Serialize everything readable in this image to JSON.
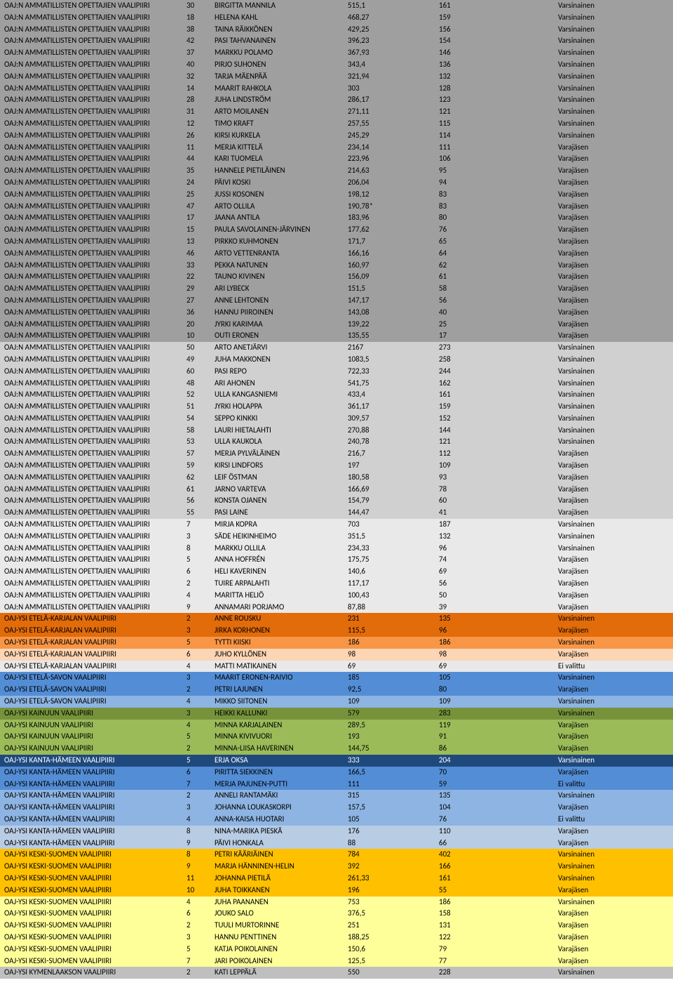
{
  "colors": {
    "darkgrey": "#9f9f9f",
    "lightgrey": "#d0d0d0",
    "verylightgrey": "#e9e9e9",
    "orange_dark": "#e26b0a",
    "orange_mid": "#f79646",
    "orange_light": "#fcd5b4",
    "blue_mid": "#538dd5",
    "blue_light": "#8db4e2",
    "green_dark": "#76933c",
    "green_mid": "#9bbb59",
    "blue_dark": "#1f497d",
    "blue_dark_t": "#ffffff",
    "lightblue": "#b8cce4",
    "yellow_dark": "#ffc000",
    "yellow_light": "#ffff99",
    "grey_kym": "#bfbfbf"
  },
  "rows": [
    {
      "bg": "darkgrey",
      "c1": "OAJ:N AMMATILLISTEN OPETTAJIEN VAALIPIIRI",
      "c2": "30",
      "c3": "BIRGITTA MANNILA",
      "c4": "515,1",
      "c5": "161",
      "c6": "Varsinainen"
    },
    {
      "bg": "darkgrey",
      "c1": "OAJ:N AMMATILLISTEN OPETTAJIEN VAALIPIIRI",
      "c2": "18",
      "c3": "HELENA KAHL",
      "c4": "468,27",
      "c5": "159",
      "c6": "Varsinainen"
    },
    {
      "bg": "darkgrey",
      "c1": "OAJ:N AMMATILLISTEN OPETTAJIEN VAALIPIIRI",
      "c2": "38",
      "c3": "TAINA RÄIKKÖNEN",
      "c4": "429,25",
      "c5": "156",
      "c6": "Varsinainen"
    },
    {
      "bg": "darkgrey",
      "c1": "OAJ:N AMMATILLISTEN OPETTAJIEN VAALIPIIRI",
      "c2": "42",
      "c3": "PASI TAHVANAINEN",
      "c4": "396,23",
      "c5": "154",
      "c6": "Varsinainen"
    },
    {
      "bg": "darkgrey",
      "c1": "OAJ:N AMMATILLISTEN OPETTAJIEN VAALIPIIRI",
      "c2": "37",
      "c3": "MARKKU POLAMO",
      "c4": "367,93",
      "c5": "146",
      "c6": "Varsinainen"
    },
    {
      "bg": "darkgrey",
      "c1": "OAJ:N AMMATILLISTEN OPETTAJIEN VAALIPIIRI",
      "c2": "40",
      "c3": "PIRJO SUHONEN",
      "c4": "343,4",
      "c5": "136",
      "c6": "Varsinainen"
    },
    {
      "bg": "darkgrey",
      "c1": "OAJ:N AMMATILLISTEN OPETTAJIEN VAALIPIIRI",
      "c2": "32",
      "c3": "TARJA MÄENPÄÄ",
      "c4": "321,94",
      "c5": "132",
      "c6": "Varsinainen"
    },
    {
      "bg": "darkgrey",
      "c1": "OAJ:N AMMATILLISTEN OPETTAJIEN VAALIPIIRI",
      "c2": "14",
      "c3": "MAARIT RAHKOLA",
      "c4": "303",
      "c5": "128",
      "c6": "Varsinainen"
    },
    {
      "bg": "darkgrey",
      "c1": "OAJ:N AMMATILLISTEN OPETTAJIEN VAALIPIIRI",
      "c2": "28",
      "c3": "JUHA LINDSTRÖM",
      "c4": "286,17",
      "c5": "123",
      "c6": "Varsinainen"
    },
    {
      "bg": "darkgrey",
      "c1": "OAJ:N AMMATILLISTEN OPETTAJIEN VAALIPIIRI",
      "c2": "31",
      "c3": "ARTO MOILANEN",
      "c4": "271,11",
      "c5": "121",
      "c6": "Varsinainen"
    },
    {
      "bg": "darkgrey",
      "c1": "OAJ:N AMMATILLISTEN OPETTAJIEN VAALIPIIRI",
      "c2": "12",
      "c3": "TIMO KRAFT",
      "c4": "257,55",
      "c5": "115",
      "c6": "Varsinainen"
    },
    {
      "bg": "darkgrey",
      "c1": "OAJ:N AMMATILLISTEN OPETTAJIEN VAALIPIIRI",
      "c2": "26",
      "c3": "KIRSI KURKELA",
      "c4": "245,29",
      "c5": "114",
      "c6": "Varsinainen"
    },
    {
      "bg": "darkgrey",
      "c1": "OAJ:N AMMATILLISTEN OPETTAJIEN VAALIPIIRI",
      "c2": "11",
      "c3": "MERJA KITTELÄ",
      "c4": "234,14",
      "c5": "111",
      "c6": "Varajäsen"
    },
    {
      "bg": "darkgrey",
      "c1": "OAJ:N AMMATILLISTEN OPETTAJIEN VAALIPIIRI",
      "c2": "44",
      "c3": "KARI TUOMELA",
      "c4": "223,96",
      "c5": "106",
      "c6": "Varajäsen"
    },
    {
      "bg": "darkgrey",
      "c1": "OAJ:N AMMATILLISTEN OPETTAJIEN VAALIPIIRI",
      "c2": "35",
      "c3": "HANNELE PIETILÄINEN",
      "c4": "214,63",
      "c5": "95",
      "c6": "Varajäsen"
    },
    {
      "bg": "darkgrey",
      "c1": "OAJ:N AMMATILLISTEN OPETTAJIEN VAALIPIIRI",
      "c2": "24",
      "c3": "PÄIVI KOSKI",
      "c4": "206,04",
      "c5": "94",
      "c6": "Varajäsen"
    },
    {
      "bg": "darkgrey",
      "c1": "OAJ:N AMMATILLISTEN OPETTAJIEN VAALIPIIRI",
      "c2": "25",
      "c3": "JUSSI KOSONEN",
      "c4": "198,12",
      "c5": "83",
      "c6": "Varajäsen"
    },
    {
      "bg": "darkgrey",
      "c1": "OAJ:N AMMATILLISTEN OPETTAJIEN VAALIPIIRI",
      "c2": "47",
      "c3": "ARTO OLLILA",
      "c4": "190,78*",
      "c5": "83",
      "c6": "Varajäsen"
    },
    {
      "bg": "darkgrey",
      "c1": "OAJ:N AMMATILLISTEN OPETTAJIEN VAALIPIIRI",
      "c2": "17",
      "c3": "JAANA ANTILA",
      "c4": "183,96",
      "c5": "80",
      "c6": "Varajäsen"
    },
    {
      "bg": "darkgrey",
      "c1": "OAJ:N AMMATILLISTEN OPETTAJIEN VAALIPIIRI",
      "c2": "15",
      "c3": "PAULA SAVOLAINEN-JÄRVINEN",
      "c4": "177,62",
      "c5": "76",
      "c6": "Varajäsen"
    },
    {
      "bg": "darkgrey",
      "c1": "OAJ:N AMMATILLISTEN OPETTAJIEN VAALIPIIRI",
      "c2": "13",
      "c3": "PIRKKO KUHMONEN",
      "c4": "171,7",
      "c5": "65",
      "c6": "Varajäsen"
    },
    {
      "bg": "darkgrey",
      "c1": "OAJ:N AMMATILLISTEN OPETTAJIEN VAALIPIIRI",
      "c2": "46",
      "c3": "ARTO VETTENRANTA",
      "c4": "166,16",
      "c5": "64",
      "c6": "Varajäsen"
    },
    {
      "bg": "darkgrey",
      "c1": "OAJ:N AMMATILLISTEN OPETTAJIEN VAALIPIIRI",
      "c2": "33",
      "c3": "PEKKA NATUNEN",
      "c4": "160,97",
      "c5": "62",
      "c6": "Varajäsen"
    },
    {
      "bg": "darkgrey",
      "c1": "OAJ:N AMMATILLISTEN OPETTAJIEN VAALIPIIRI",
      "c2": "22",
      "c3": "TAUNO KIVINEN",
      "c4": "156,09",
      "c5": "61",
      "c6": "Varajäsen"
    },
    {
      "bg": "darkgrey",
      "c1": "OAJ:N AMMATILLISTEN OPETTAJIEN VAALIPIIRI",
      "c2": "29",
      "c3": "ARI LYBECK",
      "c4": "151,5",
      "c5": "58",
      "c6": "Varajäsen"
    },
    {
      "bg": "darkgrey",
      "c1": "OAJ:N AMMATILLISTEN OPETTAJIEN VAALIPIIRI",
      "c2": "27",
      "c3": "ANNE LEHTONEN",
      "c4": "147,17",
      "c5": "56",
      "c6": "Varajäsen"
    },
    {
      "bg": "darkgrey",
      "c1": "OAJ:N AMMATILLISTEN OPETTAJIEN VAALIPIIRI",
      "c2": "36",
      "c3": "HANNU PIIROINEN",
      "c4": "143,08",
      "c5": "40",
      "c6": "Varajäsen"
    },
    {
      "bg": "darkgrey",
      "c1": "OAJ:N AMMATILLISTEN OPETTAJIEN VAALIPIIRI",
      "c2": "20",
      "c3": "JYRKI KARIMAA",
      "c4": "139,22",
      "c5": "25",
      "c6": "Varajäsen"
    },
    {
      "bg": "darkgrey",
      "c1": "OAJ:N AMMATILLISTEN OPETTAJIEN VAALIPIIRI",
      "c2": "10",
      "c3": "OUTI ERONEN",
      "c4": "135,55",
      "c5": "17",
      "c6": "Varajäsen"
    },
    {
      "bg": "lightgrey",
      "c1": "OAJ:N AMMATILLISTEN OPETTAJIEN VAALIPIIRI",
      "c2": "50",
      "c3": "ARTO ANETJÄRVI",
      "c4": "2167",
      "c5": "273",
      "c6": "Varsinainen"
    },
    {
      "bg": "lightgrey",
      "c1": "OAJ:N AMMATILLISTEN OPETTAJIEN VAALIPIIRI",
      "c2": "49",
      "c3": "JUHA MAKKONEN",
      "c4": "1083,5",
      "c5": "258",
      "c6": "Varsinainen"
    },
    {
      "bg": "lightgrey",
      "c1": "OAJ:N AMMATILLISTEN OPETTAJIEN VAALIPIIRI",
      "c2": "60",
      "c3": "PASI REPO",
      "c4": "722,33",
      "c5": "244",
      "c6": "Varsinainen"
    },
    {
      "bg": "lightgrey",
      "c1": "OAJ:N AMMATILLISTEN OPETTAJIEN VAALIPIIRI",
      "c2": "48",
      "c3": "ARI AHONEN",
      "c4": "541,75",
      "c5": "162",
      "c6": "Varsinainen"
    },
    {
      "bg": "lightgrey",
      "c1": "OAJ:N AMMATILLISTEN OPETTAJIEN VAALIPIIRI",
      "c2": "52",
      "c3": "ULLA KANGASNIEMI",
      "c4": "433,4",
      "c5": "161",
      "c6": "Varsinainen"
    },
    {
      "bg": "lightgrey",
      "c1": "OAJ:N AMMATILLISTEN OPETTAJIEN VAALIPIIRI",
      "c2": "51",
      "c3": "JYRKI HOLAPPA",
      "c4": "361,17",
      "c5": "159",
      "c6": "Varsinainen"
    },
    {
      "bg": "lightgrey",
      "c1": "OAJ:N AMMATILLISTEN OPETTAJIEN VAALIPIIRI",
      "c2": "54",
      "c3": "SEPPO KINKKI",
      "c4": "309,57",
      "c5": "152",
      "c6": "Varsinainen"
    },
    {
      "bg": "lightgrey",
      "c1": "OAJ:N AMMATILLISTEN OPETTAJIEN VAALIPIIRI",
      "c2": "58",
      "c3": "LAURI HIETALAHTI",
      "c4": "270,88",
      "c5": "144",
      "c6": "Varsinainen"
    },
    {
      "bg": "lightgrey",
      "c1": "OAJ:N AMMATILLISTEN OPETTAJIEN VAALIPIIRI",
      "c2": "53",
      "c3": "ULLA KAUKOLA",
      "c4": "240,78",
      "c5": "121",
      "c6": "Varsinainen"
    },
    {
      "bg": "lightgrey",
      "c1": "OAJ:N AMMATILLISTEN OPETTAJIEN VAALIPIIRI",
      "c2": "57",
      "c3": "MERJA PYLVÄLÄINEN",
      "c4": "216,7",
      "c5": "112",
      "c6": "Varajäsen"
    },
    {
      "bg": "lightgrey",
      "c1": "OAJ:N AMMATILLISTEN OPETTAJIEN VAALIPIIRI",
      "c2": "59",
      "c3": "KIRSI LINDFORS",
      "c4": "197",
      "c5": "109",
      "c6": "Varajäsen"
    },
    {
      "bg": "lightgrey",
      "c1": "OAJ:N AMMATILLISTEN OPETTAJIEN VAALIPIIRI",
      "c2": "62",
      "c3": "LEIF ÖSTMAN",
      "c4": "180,58",
      "c5": "93",
      "c6": "Varajäsen"
    },
    {
      "bg": "lightgrey",
      "c1": "OAJ:N AMMATILLISTEN OPETTAJIEN VAALIPIIRI",
      "c2": "61",
      "c3": "JARNO VARTEVA",
      "c4": "166,69",
      "c5": "78",
      "c6": "Varajäsen"
    },
    {
      "bg": "lightgrey",
      "c1": "OAJ:N AMMATILLISTEN OPETTAJIEN VAALIPIIRI",
      "c2": "56",
      "c3": "KONSTA OJANEN",
      "c4": "154,79",
      "c5": "60",
      "c6": "Varajäsen"
    },
    {
      "bg": "lightgrey",
      "c1": "OAJ:N AMMATILLISTEN OPETTAJIEN VAALIPIIRI",
      "c2": "55",
      "c3": "PASI LAINE",
      "c4": "144,47",
      "c5": "41",
      "c6": "Varajäsen"
    },
    {
      "bg": "verylightgrey",
      "c1": "OAJ:N AMMATILLISTEN OPETTAJIEN VAALIPIIRI",
      "c2": "7",
      "c3": "MIRJA KOPRA",
      "c4": "703",
      "c5": "187",
      "c6": "Varsinainen"
    },
    {
      "bg": "verylightgrey",
      "c1": "OAJ:N AMMATILLISTEN OPETTAJIEN VAALIPIIRI",
      "c2": "3",
      "c3": "SÄDE HEIKINHEIMO",
      "c4": "351,5",
      "c5": "132",
      "c6": "Varsinainen"
    },
    {
      "bg": "verylightgrey",
      "c1": "OAJ:N AMMATILLISTEN OPETTAJIEN VAALIPIIRI",
      "c2": "8",
      "c3": "MARKKU OLLILA",
      "c4": "234,33",
      "c5": "96",
      "c6": "Varsinainen"
    },
    {
      "bg": "verylightgrey",
      "c1": "OAJ:N AMMATILLISTEN OPETTAJIEN VAALIPIIRI",
      "c2": "5",
      "c3": "ANNA HOFFRÉN",
      "c4": "175,75",
      "c5": "74",
      "c6": "Varajäsen"
    },
    {
      "bg": "verylightgrey",
      "c1": "OAJ:N AMMATILLISTEN OPETTAJIEN VAALIPIIRI",
      "c2": "6",
      "c3": "HELI KAVERINEN",
      "c4": "140,6",
      "c5": "69",
      "c6": "Varajäsen"
    },
    {
      "bg": "verylightgrey",
      "c1": "OAJ:N AMMATILLISTEN OPETTAJIEN VAALIPIIRI",
      "c2": "2",
      "c3": "TUIRE ARPALAHTI",
      "c4": "117,17",
      "c5": "56",
      "c6": "Varajäsen"
    },
    {
      "bg": "verylightgrey",
      "c1": "OAJ:N AMMATILLISTEN OPETTAJIEN VAALIPIIRI",
      "c2": "4",
      "c3": "MARITTA HELIÖ",
      "c4": "100,43",
      "c5": "50",
      "c6": "Varajäsen"
    },
    {
      "bg": "verylightgrey",
      "c1": "OAJ:N AMMATILLISTEN OPETTAJIEN VAALIPIIRI",
      "c2": "9",
      "c3": "ANNAMARI PORJAMO",
      "c4": "87,88",
      "c5": "39",
      "c6": "Varajäsen"
    },
    {
      "bg": "orange_dark",
      "c1": "OAJ-YSI ETELÄ-KARJALAN VAALIPIIRI",
      "c2": "2",
      "c3": "ANNE ROUSKU",
      "c4": "231",
      "c5": "135",
      "c6": "Varsinainen"
    },
    {
      "bg": "orange_dark",
      "c1": "OAJ-YSI ETELÄ-KARJALAN VAALIPIIRI",
      "c2": "3",
      "c3": "JIRKA KORHONEN",
      "c4": "115,5",
      "c5": "96",
      "c6": "Varajäsen"
    },
    {
      "bg": "orange_mid",
      "c1": "OAJ-YSI ETELÄ-KARJALAN VAALIPIIRI",
      "c2": "5",
      "c3": "TYTTI KIISKI",
      "c4": "186",
      "c5": "186",
      "c6": "Varsinainen"
    },
    {
      "bg": "orange_light",
      "c1": "OAJ-YSI ETELÄ-KARJALAN VAALIPIIRI",
      "c2": "6",
      "c3": "JUHO KYLLÖNEN",
      "c4": "98",
      "c5": "98",
      "c6": "Varajäsen"
    },
    {
      "bg": "verylightgrey",
      "c1": "OAJ-YSI ETELÄ-KARJALAN VAALIPIIRI",
      "c2": "4",
      "c3": "MATTI MATIKAINEN",
      "c4": "69",
      "c5": "69",
      "c6": "Ei valittu"
    },
    {
      "bg": "blue_mid",
      "c1": "OAJ-YSI ETELÄ-SAVON VAALIPIIRI",
      "c2": "3",
      "c3": "MAARIT ERONEN-RAIVIO",
      "c4": "185",
      "c5": "105",
      "c6": "Varsinainen"
    },
    {
      "bg": "blue_mid",
      "c1": "OAJ-YSI ETELÄ-SAVON VAALIPIIRI",
      "c2": "2",
      "c3": "PETRI LAJUNEN",
      "c4": "92,5",
      "c5": "80",
      "c6": "Varajäsen"
    },
    {
      "bg": "blue_light",
      "c1": "OAJ-YSI ETELÄ-SAVON VAALIPIIRI",
      "c2": "4",
      "c3": "MIKKO SIITONEN",
      "c4": "109",
      "c5": "109",
      "c6": "Varsinainen"
    },
    {
      "bg": "green_dark",
      "c1": "OAJ-YSI KAINUUN VAALIPIIRI",
      "c2": "3",
      "c3": "HEIKKI KALLUNKI",
      "c4": "579",
      "c5": "283",
      "c6": "Varsinainen"
    },
    {
      "bg": "green_mid",
      "c1": "OAJ-YSI KAINUUN VAALIPIIRI",
      "c2": "4",
      "c3": "MINNA KARJALAINEN",
      "c4": "289,5",
      "c5": "119",
      "c6": "Varajäsen"
    },
    {
      "bg": "green_mid",
      "c1": "OAJ-YSI KAINUUN VAALIPIIRI",
      "c2": "5",
      "c3": "MINNA KIVIVUORI",
      "c4": "193",
      "c5": "91",
      "c6": "Varajäsen"
    },
    {
      "bg": "green_mid",
      "c1": "OAJ-YSI KAINUUN VAALIPIIRI",
      "c2": "2",
      "c3": "MINNA-LIISA HAVERINEN",
      "c4": "144,75",
      "c5": "86",
      "c6": "Varajäsen"
    },
    {
      "bg": "blue_dark",
      "fg": "blue_dark_t",
      "c1": "OAJ-YSI KANTA-HÄMEEN VAALIPIIRI",
      "c2": "5",
      "c3": "ERJA OKSA",
      "c4": "333",
      "c5": "204",
      "c6": "Varsinainen"
    },
    {
      "bg": "blue_mid",
      "c1": "OAJ-YSI KANTA-HÄMEEN VAALIPIIRI",
      "c2": "6",
      "c3": "PIRITTA SIEKKINEN",
      "c4": "166,5",
      "c5": "70",
      "c6": "Varajäsen"
    },
    {
      "bg": "blue_mid",
      "c1": "OAJ-YSI KANTA-HÄMEEN VAALIPIIRI",
      "c2": "7",
      "c3": "MERJA PAJUNEN-PUTTI",
      "c4": "111",
      "c5": "59",
      "c6": "Ei valittu"
    },
    {
      "bg": "blue_light",
      "c1": "OAJ-YSI KANTA-HÄMEEN VAALIPIIRI",
      "c2": "2",
      "c3": "ANNELI RANTAMÄKI",
      "c4": "315",
      "c5": "135",
      "c6": "Varsinainen"
    },
    {
      "bg": "blue_light",
      "c1": "OAJ-YSI KANTA-HÄMEEN VAALIPIIRI",
      "c2": "3",
      "c3": "JOHANNA LOUKASKORPI",
      "c4": "157,5",
      "c5": "104",
      "c6": "Varajäsen"
    },
    {
      "bg": "blue_light",
      "c1": "OAJ-YSI KANTA-HÄMEEN VAALIPIIRI",
      "c2": "4",
      "c3": "ANNA-KAISA HUOTARI",
      "c4": "105",
      "c5": "76",
      "c6": "Ei valittu"
    },
    {
      "bg": "lightblue",
      "c1": "OAJ-YSI KANTA-HÄMEEN VAALIPIIRI",
      "c2": "8",
      "c3": "NINA-MARIKA PIESKÄ",
      "c4": "176",
      "c5": "110",
      "c6": "Varajäsen"
    },
    {
      "bg": "lightblue",
      "c1": "OAJ-YSI KANTA-HÄMEEN VAALIPIIRI",
      "c2": "9",
      "c3": "PÄIVI HONKALA",
      "c4": "88",
      "c5": "66",
      "c6": "Varajäsen"
    },
    {
      "bg": "yellow_dark",
      "c1": "OAJ-YSI KESKI-SUOMEN VAALIPIIRI",
      "c2": "8",
      "c3": "PETRI KÄÄRIÄINEN",
      "c4": "784",
      "c5": "402",
      "c6": "Varsinainen"
    },
    {
      "bg": "yellow_dark",
      "c1": "OAJ-YSI KESKI-SUOMEN VAALIPIIRI",
      "c2": "9",
      "c3": "MARJA HÄNNINEN-HELIN",
      "c4": "392",
      "c5": "166",
      "c6": "Varsinainen"
    },
    {
      "bg": "yellow_dark",
      "c1": "OAJ-YSI KESKI-SUOMEN VAALIPIIRI",
      "c2": "11",
      "c3": "JOHANNA PIETILÄ",
      "c4": "261,33",
      "c5": "161",
      "c6": "Varsinainen"
    },
    {
      "bg": "yellow_dark",
      "c1": "OAJ-YSI KESKI-SUOMEN VAALIPIIRI",
      "c2": "10",
      "c3": "JUHA TOIKKANEN",
      "c4": "196",
      "c5": "55",
      "c6": "Varajäsen"
    },
    {
      "bg": "yellow_light",
      "c1": "OAJ-YSI KESKI-SUOMEN VAALIPIIRI",
      "c2": "4",
      "c3": "JUHA PAANANEN",
      "c4": "753",
      "c5": "186",
      "c6": "Varsinainen"
    },
    {
      "bg": "yellow_light",
      "c1": "OAJ-YSI KESKI-SUOMEN VAALIPIIRI",
      "c2": "6",
      "c3": "JOUKO SALO",
      "c4": "376,5",
      "c5": "158",
      "c6": "Varajäsen"
    },
    {
      "bg": "yellow_light",
      "c1": "OAJ-YSI KESKI-SUOMEN VAALIPIIRI",
      "c2": "2",
      "c3": "TUULI MURTORINNE",
      "c4": "251",
      "c5": "131",
      "c6": "Varajäsen"
    },
    {
      "bg": "yellow_light",
      "c1": "OAJ-YSI KESKI-SUOMEN VAALIPIIRI",
      "c2": "3",
      "c3": "HANNU PENTTINEN",
      "c4": "188,25",
      "c5": "122",
      "c6": "Varajäsen"
    },
    {
      "bg": "yellow_light",
      "c1": "OAJ-YSI KESKI-SUOMEN VAALIPIIRI",
      "c2": "5",
      "c3": "KATJA POIKOLAINEN",
      "c4": "150,6",
      "c5": "79",
      "c6": "Varajäsen"
    },
    {
      "bg": "yellow_light",
      "c1": "OAJ-YSI KESKI-SUOMEN VAALIPIIRI",
      "c2": "7",
      "c3": "JARI POIKOLAINEN",
      "c4": "125,5",
      "c5": "77",
      "c6": "Varajäsen"
    },
    {
      "bg": "grey_kym",
      "c1": "OAJ-YSI KYMENLAAKSON VAALIPIIRI",
      "c2": "2",
      "c3": "KATI LEPPÄLÄ",
      "c4": "550",
      "c5": "228",
      "c6": "Varsinainen"
    }
  ]
}
